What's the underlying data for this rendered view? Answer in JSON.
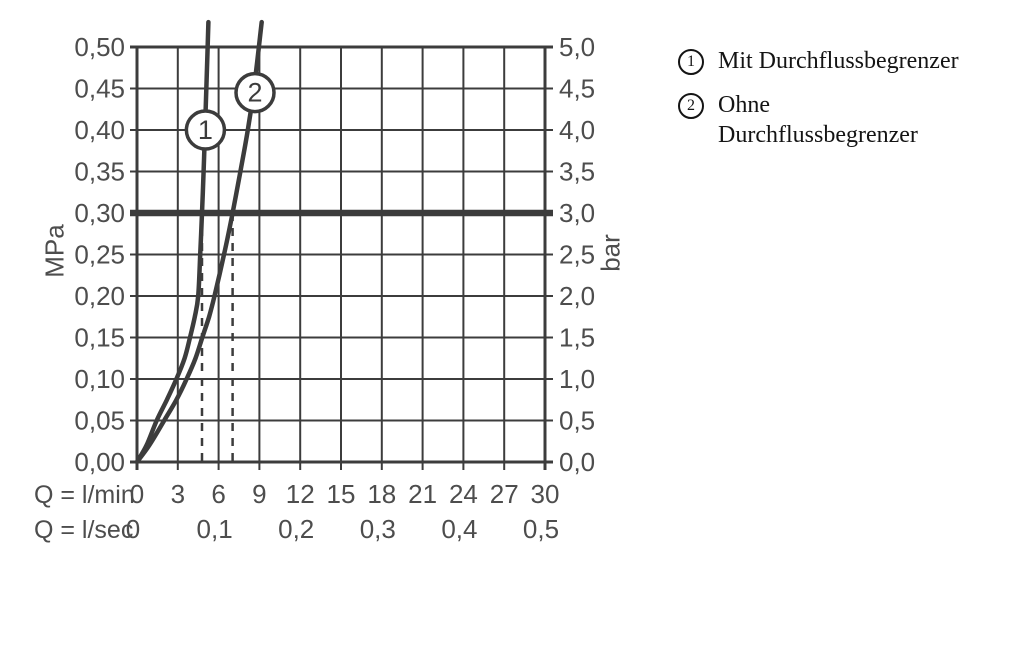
{
  "chart_data": {
    "type": "line",
    "title": "",
    "ylabel_left": "MPa",
    "ylabel_right": "bar",
    "xlabel_row1": "Q = l/min",
    "xlabel_row2": "Q = l/sec",
    "x_range_lmin": [
      0,
      30
    ],
    "y_range_mpa": [
      0.0,
      0.5
    ],
    "grid": true,
    "x_ticks_lmin": [
      "0",
      "3",
      "6",
      "9",
      "12",
      "15",
      "18",
      "21",
      "24",
      "27",
      "30"
    ],
    "x_ticks_lsec": [
      {
        "label": "0",
        "at_lmin": 0
      },
      {
        "label": "0,1",
        "at_lmin": 6
      },
      {
        "label": "0,2",
        "at_lmin": 12
      },
      {
        "label": "0,3",
        "at_lmin": 18
      },
      {
        "label": "0,4",
        "at_lmin": 24
      },
      {
        "label": "0,5",
        "at_lmin": 30
      }
    ],
    "y_ticks_mpa": [
      "0,50",
      "0,45",
      "0,40",
      "0,35",
      "0,30",
      "0,25",
      "0,20",
      "0,15",
      "0,10",
      "0,05",
      "0,00"
    ],
    "y_ticks_bar": [
      "5,0",
      "4,5",
      "4,0",
      "3,5",
      "3,0",
      "2,5",
      "2,0",
      "1,5",
      "1,0",
      "0,5",
      "0,0"
    ],
    "reference_line_mpa": 0.3,
    "dashed_guides_lmin": [
      4.78,
      7.03
    ],
    "series": [
      {
        "marker": "1",
        "name": "Mit Durchflussbegrenzer",
        "marker_at": {
          "q": 5.03,
          "p": 0.4
        },
        "points": [
          [
            0,
            0
          ],
          [
            0.7,
            0.02
          ],
          [
            1.45,
            0.05
          ],
          [
            2.2,
            0.075
          ],
          [
            2.9,
            0.1
          ],
          [
            3.5,
            0.125
          ],
          [
            3.9,
            0.15
          ],
          [
            4.25,
            0.175
          ],
          [
            4.5,
            0.2
          ],
          [
            4.65,
            0.25
          ],
          [
            4.78,
            0.3
          ],
          [
            4.9,
            0.35
          ],
          [
            5.0,
            0.4
          ],
          [
            5.12,
            0.46
          ],
          [
            5.25,
            0.53
          ]
        ]
      },
      {
        "marker": "2",
        "name": "Ohne Durchflussbegrenzer",
        "marker_at": {
          "q": 8.68,
          "p": 0.445
        },
        "points": [
          [
            0,
            0
          ],
          [
            0.9,
            0.02
          ],
          [
            2.0,
            0.05
          ],
          [
            2.9,
            0.075
          ],
          [
            3.65,
            0.1
          ],
          [
            4.3,
            0.125
          ],
          [
            4.8,
            0.15
          ],
          [
            5.3,
            0.175
          ],
          [
            5.7,
            0.2
          ],
          [
            6.4,
            0.25
          ],
          [
            7.03,
            0.3
          ],
          [
            7.6,
            0.35
          ],
          [
            8.15,
            0.4
          ],
          [
            8.6,
            0.45
          ],
          [
            9.17,
            0.53
          ]
        ]
      }
    ],
    "legend": [
      {
        "marker": "1",
        "label": "Mit Durchflussbegrenzer"
      },
      {
        "marker": "2",
        "label": "Ohne Durchflussbegrenzer"
      }
    ],
    "colors": {
      "line": "#3c3c3c",
      "grid": "#3c3c3c",
      "axis_text": "#4d4d4d",
      "legend_text": "#141414",
      "background": "#ffffff"
    }
  }
}
